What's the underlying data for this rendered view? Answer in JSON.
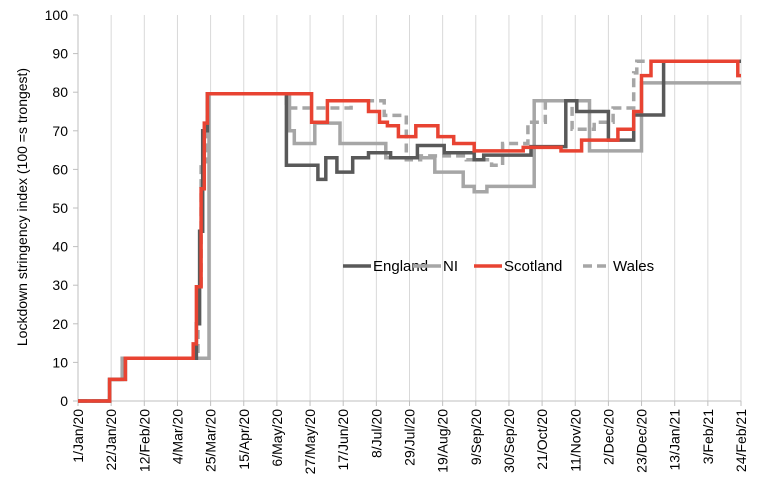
{
  "chart_data": {
    "type": "line",
    "title": "",
    "ylabel": "Lockdown stringency index (100 =s trongest)",
    "xlabel": "",
    "ylim": [
      0,
      100
    ],
    "yticks": [
      0,
      10,
      20,
      30,
      40,
      50,
      60,
      70,
      80,
      90,
      100
    ],
    "xlim": [
      "2020-01-01",
      "2021-02-24"
    ],
    "xtick_labels": [
      "1/Jan/20",
      "22/Jan/20",
      "12/Feb/20",
      "4/Mar/20",
      "25/Mar/20",
      "15/Apr/20",
      "6/May/20",
      "27/May/20",
      "17/Jun/20",
      "8/Jul/20",
      "29/Jul/20",
      "19/Aug/20",
      "9/Sep/20",
      "30/Sep/20",
      "21/Oct/20",
      "11/Nov/20",
      "2/Dec/20",
      "23/Dec/20",
      "13/Jan/21",
      "3/Feb/21",
      "24/Feb/21"
    ],
    "grid": "vertical gridlines at x ticks",
    "legend": "center-right",
    "step": true,
    "series": [
      {
        "name": "England",
        "color": "#595959",
        "dash": "solid",
        "points": [
          [
            "2020-01-01",
            0
          ],
          [
            "2020-01-21",
            5.6
          ],
          [
            "2020-01-31",
            11.1
          ],
          [
            "2020-03-16",
            20
          ],
          [
            "2020-03-18",
            44
          ],
          [
            "2020-03-20",
            70
          ],
          [
            "2020-03-23",
            79.6
          ],
          [
            "2020-05-12",
            61.1
          ],
          [
            "2020-06-01",
            57.4
          ],
          [
            "2020-06-06",
            63
          ],
          [
            "2020-06-13",
            59.3
          ],
          [
            "2020-06-23",
            63
          ],
          [
            "2020-07-03",
            64.3
          ],
          [
            "2020-07-17",
            63
          ],
          [
            "2020-08-03",
            66.2
          ],
          [
            "2020-08-20",
            64.3
          ],
          [
            "2020-09-08",
            62.5
          ],
          [
            "2020-09-14",
            63.7
          ],
          [
            "2020-10-14",
            65.9
          ],
          [
            "2020-11-05",
            77.8
          ],
          [
            "2020-11-12",
            75.0
          ],
          [
            "2020-12-02",
            67.6
          ],
          [
            "2020-12-18",
            74.1
          ],
          [
            "2021-01-06",
            88.0
          ],
          [
            "2021-02-24",
            88.0
          ]
        ]
      },
      {
        "name": "NI",
        "color": "#a6a6a6",
        "dash": "solid",
        "points": [
          [
            "2020-01-01",
            0
          ],
          [
            "2020-01-21",
            5.6
          ],
          [
            "2020-01-29",
            11.1
          ],
          [
            "2020-03-24",
            79.6
          ],
          [
            "2020-05-14",
            70
          ],
          [
            "2020-05-17",
            66.7
          ],
          [
            "2020-05-30",
            72
          ],
          [
            "2020-06-15",
            66.7
          ],
          [
            "2020-07-14",
            63
          ],
          [
            "2020-08-14",
            59.3
          ],
          [
            "2020-09-01",
            55.6
          ],
          [
            "2020-09-08",
            54.2
          ],
          [
            "2020-09-16",
            55.6
          ],
          [
            "2020-10-16",
            77.8
          ],
          [
            "2020-11-20",
            64.8
          ],
          [
            "2020-12-23",
            82.4
          ],
          [
            "2021-02-24",
            82.4
          ]
        ]
      },
      {
        "name": "Scotland",
        "color": "#e84332",
        "dash": "solid",
        "points": [
          [
            "2020-01-01",
            0
          ],
          [
            "2020-01-21",
            5.6
          ],
          [
            "2020-01-31",
            11.1
          ],
          [
            "2020-03-14",
            14.8
          ],
          [
            "2020-03-16",
            29.6
          ],
          [
            "2020-03-19",
            55
          ],
          [
            "2020-03-21",
            72
          ],
          [
            "2020-03-23",
            79.6
          ],
          [
            "2020-05-28",
            72.2
          ],
          [
            "2020-06-07",
            77.8
          ],
          [
            "2020-07-03",
            75
          ],
          [
            "2020-07-10",
            72.2
          ],
          [
            "2020-07-15",
            71.3
          ],
          [
            "2020-07-22",
            68.5
          ],
          [
            "2020-08-02",
            71.3
          ],
          [
            "2020-08-16",
            68.5
          ],
          [
            "2020-08-26",
            66.7
          ],
          [
            "2020-09-08",
            64.8
          ],
          [
            "2020-10-09",
            65.7
          ],
          [
            "2020-11-02",
            64.8
          ],
          [
            "2020-11-15",
            67.6
          ],
          [
            "2020-12-08",
            70.4
          ],
          [
            "2020-12-18",
            75
          ],
          [
            "2020-12-23",
            84.3
          ],
          [
            "2020-12-29",
            88.0
          ],
          [
            "2021-02-22",
            84.3
          ],
          [
            "2021-02-24",
            84.3
          ]
        ]
      },
      {
        "name": "Wales",
        "color": "#a6a6a6",
        "dash": "dashed",
        "points": [
          [
            "2020-01-01",
            0
          ],
          [
            "2020-01-21",
            5.6
          ],
          [
            "2020-01-29",
            11.1
          ],
          [
            "2020-03-17",
            30
          ],
          [
            "2020-03-19",
            62
          ],
          [
            "2020-03-23",
            79.6
          ],
          [
            "2020-05-12",
            75.9
          ],
          [
            "2020-06-22",
            77.8
          ],
          [
            "2020-07-13",
            74
          ],
          [
            "2020-07-27",
            62.5
          ],
          [
            "2020-08-05",
            63.5
          ],
          [
            "2020-09-03",
            62.5
          ],
          [
            "2020-09-19",
            61.1
          ],
          [
            "2020-09-26",
            66.7
          ],
          [
            "2020-10-12",
            72.2
          ],
          [
            "2020-10-23",
            77.8
          ],
          [
            "2020-11-09",
            70.4
          ],
          [
            "2020-11-23",
            72.2
          ],
          [
            "2020-12-05",
            75.9
          ],
          [
            "2020-12-18",
            85
          ],
          [
            "2020-12-20",
            88.0
          ],
          [
            "2021-02-24",
            88.0
          ]
        ]
      }
    ]
  }
}
